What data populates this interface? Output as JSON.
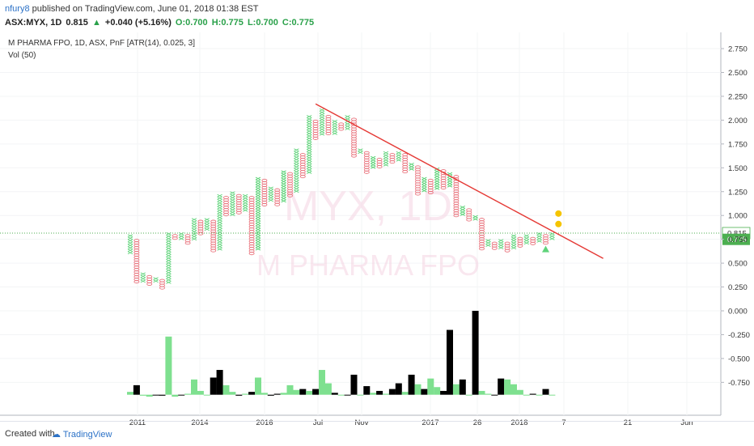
{
  "header": {
    "user": "nfury8",
    "published_text": "published on TradingView.com, June 01, 2018 01:38 EST",
    "symbol": "ASX:MYX, 1D",
    "last": "0.815",
    "change": "+0.040 (+5.16%)",
    "open": "O:0.700",
    "high": "H:0.775",
    "low": "L:0.700",
    "close": "C:0.775"
  },
  "info": {
    "line1": "M PHARMA FPO, 1D, ASX, PnF [ATR(14), 0.025, 3]",
    "line2": "Vol (50)"
  },
  "watermark": {
    "symbol": "MYX, 1D",
    "name": "M PHARMA FPO"
  },
  "footer": {
    "created": "Created with",
    "brand": "TradingView"
  },
  "colors": {
    "up": "#5fd37a",
    "down": "#e8707a",
    "trendline": "#e53935",
    "vol_up": "#7ee08f",
    "vol_down": "#000000",
    "last_price_label": "#4caf50"
  },
  "chart_data": {
    "type": "pnf",
    "y_ticks": [
      "2.750",
      "2.500",
      "2.250",
      "2.000",
      "1.750",
      "1.500",
      "1.250",
      "1.000",
      "0.750",
      "0.500",
      "0.250",
      "0.000",
      "-0.250",
      "-0.500",
      "-0.750"
    ],
    "x_labels": [
      "2011",
      "2014",
      "2016",
      "Jul",
      "Nov",
      "2017",
      "26",
      "2018",
      "7",
      "21",
      "Jun"
    ],
    "last_price_label": "0.815",
    "close_label": "0.775",
    "columns": [
      {
        "t": "X",
        "lo": 0.62,
        "hi": 0.8
      },
      {
        "t": "O",
        "lo": 0.3,
        "hi": 0.75
      },
      {
        "t": "X",
        "lo": 0.3,
        "hi": 0.4
      },
      {
        "t": "O",
        "lo": 0.27,
        "hi": 0.37
      },
      {
        "t": "X",
        "lo": 0.3,
        "hi": 0.35
      },
      {
        "t": "O",
        "lo": 0.25,
        "hi": 0.33
      },
      {
        "t": "X",
        "lo": 0.3,
        "hi": 0.82
      },
      {
        "t": "O",
        "lo": 0.75,
        "hi": 0.8
      },
      {
        "t": "X",
        "lo": 0.75,
        "hi": 0.82
      },
      {
        "t": "O",
        "lo": 0.72,
        "hi": 0.8
      },
      {
        "t": "X",
        "lo": 0.75,
        "hi": 0.97
      },
      {
        "t": "O",
        "lo": 0.8,
        "hi": 0.95
      },
      {
        "t": "X",
        "lo": 0.85,
        "hi": 0.97
      },
      {
        "t": "O",
        "lo": 0.62,
        "hi": 0.95
      },
      {
        "t": "X",
        "lo": 0.65,
        "hi": 1.22
      },
      {
        "t": "O",
        "lo": 1.02,
        "hi": 1.2
      },
      {
        "t": "X",
        "lo": 1.0,
        "hi": 1.25
      },
      {
        "t": "O",
        "lo": 1.02,
        "hi": 1.22
      },
      {
        "t": "X",
        "lo": 1.05,
        "hi": 1.22
      },
      {
        "t": "O",
        "lo": 0.6,
        "hi": 1.2
      },
      {
        "t": "X",
        "lo": 0.65,
        "hi": 1.4
      },
      {
        "t": "O",
        "lo": 1.12,
        "hi": 1.38
      },
      {
        "t": "X",
        "lo": 1.15,
        "hi": 1.3
      },
      {
        "t": "O",
        "lo": 1.12,
        "hi": 1.28
      },
      {
        "t": "X",
        "lo": 1.15,
        "hi": 1.47
      },
      {
        "t": "O",
        "lo": 1.2,
        "hi": 1.45
      },
      {
        "t": "X",
        "lo": 1.25,
        "hi": 1.7
      },
      {
        "t": "O",
        "lo": 1.4,
        "hi": 1.65
      },
      {
        "t": "X",
        "lo": 1.45,
        "hi": 2.05
      },
      {
        "t": "O",
        "lo": 1.8,
        "hi": 2.0
      },
      {
        "t": "X",
        "lo": 1.85,
        "hi": 2.12
      },
      {
        "t": "O",
        "lo": 1.85,
        "hi": 2.05
      },
      {
        "t": "X",
        "lo": 1.85,
        "hi": 2.0
      },
      {
        "t": "O",
        "lo": 1.9,
        "hi": 1.97
      },
      {
        "t": "X",
        "lo": 1.92,
        "hi": 2.05
      },
      {
        "t": "O",
        "lo": 1.62,
        "hi": 2.02
      },
      {
        "t": "X",
        "lo": 1.65,
        "hi": 1.7
      },
      {
        "t": "O",
        "lo": 1.45,
        "hi": 1.67
      },
      {
        "t": "X",
        "lo": 1.5,
        "hi": 1.62
      },
      {
        "t": "O",
        "lo": 1.5,
        "hi": 1.6
      },
      {
        "t": "X",
        "lo": 1.52,
        "hi": 1.67
      },
      {
        "t": "O",
        "lo": 1.55,
        "hi": 1.65
      },
      {
        "t": "X",
        "lo": 1.58,
        "hi": 1.67
      },
      {
        "t": "O",
        "lo": 1.45,
        "hi": 1.65
      },
      {
        "t": "X",
        "lo": 1.48,
        "hi": 1.55
      },
      {
        "t": "O",
        "lo": 1.22,
        "hi": 1.52
      },
      {
        "t": "X",
        "lo": 1.25,
        "hi": 1.4
      },
      {
        "t": "O",
        "lo": 1.25,
        "hi": 1.38
      },
      {
        "t": "X",
        "lo": 1.28,
        "hi": 1.5
      },
      {
        "t": "O",
        "lo": 1.28,
        "hi": 1.48
      },
      {
        "t": "X",
        "lo": 1.3,
        "hi": 1.45
      },
      {
        "t": "O",
        "lo": 1.0,
        "hi": 1.42
      },
      {
        "t": "X",
        "lo": 1.0,
        "hi": 1.1
      },
      {
        "t": "O",
        "lo": 0.95,
        "hi": 1.07
      },
      {
        "t": "X",
        "lo": 0.95,
        "hi": 1.0
      },
      {
        "t": "O",
        "lo": 0.65,
        "hi": 0.97
      },
      {
        "t": "X",
        "lo": 0.68,
        "hi": 0.75
      },
      {
        "t": "O",
        "lo": 0.65,
        "hi": 0.72
      },
      {
        "t": "X",
        "lo": 0.67,
        "hi": 0.75
      },
      {
        "t": "O",
        "lo": 0.62,
        "hi": 0.72
      },
      {
        "t": "X",
        "lo": 0.65,
        "hi": 0.8
      },
      {
        "t": "O",
        "lo": 0.68,
        "hi": 0.77
      },
      {
        "t": "X",
        "lo": 0.7,
        "hi": 0.8
      },
      {
        "t": "O",
        "lo": 0.7,
        "hi": 0.77
      },
      {
        "t": "X",
        "lo": 0.72,
        "hi": 0.82
      },
      {
        "t": "O",
        "lo": 0.72,
        "hi": 0.8
      },
      {
        "t": "X",
        "lo": 0.75,
        "hi": 0.82
      }
    ],
    "trendline": {
      "from": {
        "col": 29,
        "price": 2.17
      },
      "to": {
        "col": 74,
        "price": 0.55
      }
    },
    "markers": [
      {
        "type": "circle",
        "col": 67,
        "price": 1.02
      },
      {
        "type": "circle",
        "col": 67,
        "price": 0.91
      },
      {
        "type": "triangle",
        "col": 65,
        "price": 0.64
      }
    ],
    "volume": [
      {
        "col": 0,
        "v": -0.85,
        "c": "up"
      },
      {
        "col": 1,
        "v": -0.78,
        "c": "down"
      },
      {
        "col": 2,
        "v": -0.89,
        "c": "up"
      },
      {
        "col": 3,
        "v": -0.9,
        "c": "up"
      },
      {
        "col": 4,
        "v": -0.88,
        "c": "down"
      },
      {
        "col": 5,
        "v": -0.89,
        "c": "down"
      },
      {
        "col": 6,
        "v": -0.27,
        "c": "up"
      },
      {
        "col": 7,
        "v": -0.9,
        "c": "up"
      },
      {
        "col": 8,
        "v": -0.88,
        "c": "down"
      },
      {
        "col": 9,
        "v": -0.87,
        "c": "up"
      },
      {
        "col": 10,
        "v": -0.72,
        "c": "up"
      },
      {
        "col": 11,
        "v": -0.84,
        "c": "up"
      },
      {
        "col": 12,
        "v": -0.88,
        "c": "up"
      },
      {
        "col": 13,
        "v": -0.7,
        "c": "down"
      },
      {
        "col": 14,
        "v": -0.62,
        "c": "down"
      },
      {
        "col": 15,
        "v": -0.78,
        "c": "up"
      },
      {
        "col": 16,
        "v": -0.85,
        "c": "up"
      },
      {
        "col": 17,
        "v": -0.89,
        "c": "down"
      },
      {
        "col": 18,
        "v": -0.87,
        "c": "up"
      },
      {
        "col": 19,
        "v": -0.85,
        "c": "down"
      },
      {
        "col": 20,
        "v": -0.7,
        "c": "up"
      },
      {
        "col": 21,
        "v": -0.86,
        "c": "up"
      },
      {
        "col": 22,
        "v": -0.89,
        "c": "down"
      },
      {
        "col": 23,
        "v": -0.87,
        "c": "down"
      },
      {
        "col": 24,
        "v": -0.86,
        "c": "up"
      },
      {
        "col": 25,
        "v": -0.78,
        "c": "up"
      },
      {
        "col": 26,
        "v": -0.83,
        "c": "up"
      },
      {
        "col": 27,
        "v": -0.82,
        "c": "down"
      },
      {
        "col": 28,
        "v": -0.84,
        "c": "up"
      },
      {
        "col": 29,
        "v": -0.82,
        "c": "down"
      },
      {
        "col": 30,
        "v": -0.62,
        "c": "up"
      },
      {
        "col": 31,
        "v": -0.76,
        "c": "up"
      },
      {
        "col": 32,
        "v": -0.86,
        "c": "down"
      },
      {
        "col": 33,
        "v": -0.88,
        "c": "up"
      },
      {
        "col": 34,
        "v": -0.88,
        "c": "down"
      },
      {
        "col": 35,
        "v": -0.67,
        "c": "down"
      },
      {
        "col": 36,
        "v": -0.88,
        "c": "up"
      },
      {
        "col": 37,
        "v": -0.79,
        "c": "down"
      },
      {
        "col": 38,
        "v": -0.86,
        "c": "up"
      },
      {
        "col": 39,
        "v": -0.84,
        "c": "down"
      },
      {
        "col": 40,
        "v": -0.87,
        "c": "up"
      },
      {
        "col": 41,
        "v": -0.82,
        "c": "down"
      },
      {
        "col": 42,
        "v": -0.76,
        "c": "down"
      },
      {
        "col": 43,
        "v": -0.85,
        "c": "up"
      },
      {
        "col": 44,
        "v": -0.67,
        "c": "down"
      },
      {
        "col": 45,
        "v": -0.77,
        "c": "up"
      },
      {
        "col": 46,
        "v": -0.82,
        "c": "down"
      },
      {
        "col": 47,
        "v": -0.71,
        "c": "up"
      },
      {
        "col": 48,
        "v": -0.8,
        "c": "up"
      },
      {
        "col": 49,
        "v": -0.84,
        "c": "down"
      },
      {
        "col": 50,
        "v": -0.2,
        "c": "down"
      },
      {
        "col": 51,
        "v": -0.77,
        "c": "up"
      },
      {
        "col": 52,
        "v": -0.72,
        "c": "down"
      },
      {
        "col": 53,
        "v": -0.88,
        "c": "up"
      },
      {
        "col": 54,
        "v": 0.0,
        "c": "down"
      },
      {
        "col": 55,
        "v": -0.84,
        "c": "up"
      },
      {
        "col": 56,
        "v": -0.87,
        "c": "up"
      },
      {
        "col": 57,
        "v": -0.88,
        "c": "down"
      },
      {
        "col": 58,
        "v": -0.71,
        "c": "down"
      },
      {
        "col": 59,
        "v": -0.72,
        "c": "up"
      },
      {
        "col": 60,
        "v": -0.77,
        "c": "up"
      },
      {
        "col": 61,
        "v": -0.83,
        "c": "up"
      },
      {
        "col": 62,
        "v": -0.88,
        "c": "up"
      },
      {
        "col": 63,
        "v": -0.87,
        "c": "down"
      },
      {
        "col": 64,
        "v": -0.88,
        "c": "up"
      },
      {
        "col": 65,
        "v": -0.82,
        "c": "down"
      },
      {
        "col": 66,
        "v": -0.88,
        "c": "up"
      }
    ],
    "ylim": [
      -0.86,
      2.85
    ]
  }
}
